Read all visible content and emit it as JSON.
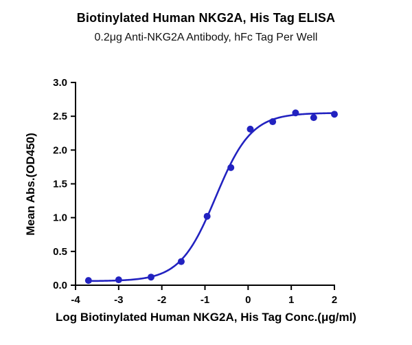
{
  "chart": {
    "title": "Biotinylated Human NKG2A, His Tag ELISA",
    "subtitle": "0.2μg Anti-NKG2A Antibody, hFc Tag Per Well",
    "ylabel": "Mean Abs.(OD450)",
    "xlabel": "Log Biotinylated Human NKG2A, His Tag Conc.(μg/ml)"
  },
  "chart_data": {
    "type": "scatter",
    "title": "Biotinylated Human NKG2A, His Tag ELISA",
    "subtitle": "0.2μg Anti-NKG2A Antibody, hFc Tag Per Well",
    "xlabel": "Log Biotinylated Human NKG2A, His Tag Conc.(μg/ml)",
    "ylabel": "Mean Abs.(OD450)",
    "x": [
      -3.7,
      -3.0,
      -2.25,
      -1.55,
      -0.95,
      -0.4,
      0.05,
      0.57,
      1.1,
      1.52,
      2.0
    ],
    "y": [
      0.07,
      0.08,
      0.12,
      0.35,
      1.02,
      1.74,
      2.31,
      2.42,
      2.55,
      2.48,
      2.53
    ],
    "curve_fit": {
      "model": "4PL-sigmoid",
      "bottom": 0.06,
      "top": 2.55,
      "logEC50": -0.75,
      "hillslope": 1.05
    },
    "xlim": [
      -4,
      2
    ],
    "ylim": [
      0,
      3
    ],
    "xticks": [
      -4,
      -3,
      -2,
      -1,
      0,
      1,
      2
    ],
    "xtick_labels": [
      "-4",
      "-3",
      "-2",
      "-1",
      "0",
      "1",
      "2"
    ],
    "yticks": [
      0,
      0.5,
      1,
      1.5,
      2,
      2.5,
      3
    ],
    "ytick_labels": [
      "0.0",
      "0.5",
      "1.0",
      "1.5",
      "2.0",
      "2.5",
      "3.0"
    ],
    "grid": false,
    "legend": "none",
    "colors": {
      "curve": "#2222c0",
      "points": "#2222c0",
      "axis": "#000000",
      "text": "#000000"
    }
  }
}
